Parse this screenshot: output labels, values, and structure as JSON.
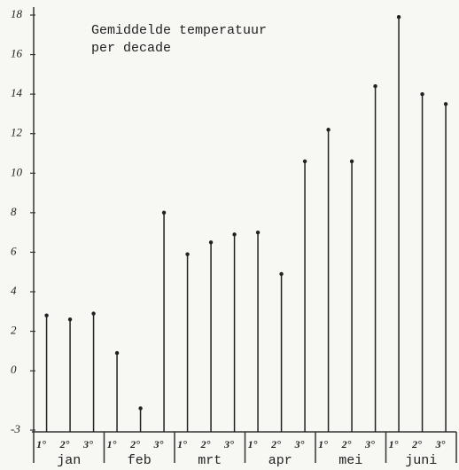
{
  "chart_data": {
    "type": "stem",
    "title": "Gemiddelde temperatuur",
    "subtitle": "per decade",
    "categories": [
      "1°",
      "2°",
      "3°",
      "1°",
      "2°",
      "3°",
      "1°",
      "2°",
      "3°",
      "1°",
      "2°",
      "3°",
      "1°",
      "2°",
      "3°",
      "1°",
      "2°",
      "3°"
    ],
    "groups": [
      "jan",
      "feb",
      "mrt",
      "apr",
      "mei",
      "juni"
    ],
    "values": [
      2.8,
      2.6,
      2.9,
      0.9,
      -1.9,
      8.0,
      5.9,
      6.5,
      6.9,
      7.0,
      4.9,
      10.6,
      12.2,
      10.6,
      14.4,
      17.9,
      14.0,
      13.5
    ],
    "color": "#222222",
    "ylim": [
      -3,
      18
    ],
    "yticks": [
      -3,
      0,
      2,
      4,
      6,
      8,
      10,
      12,
      14,
      16,
      18
    ]
  }
}
